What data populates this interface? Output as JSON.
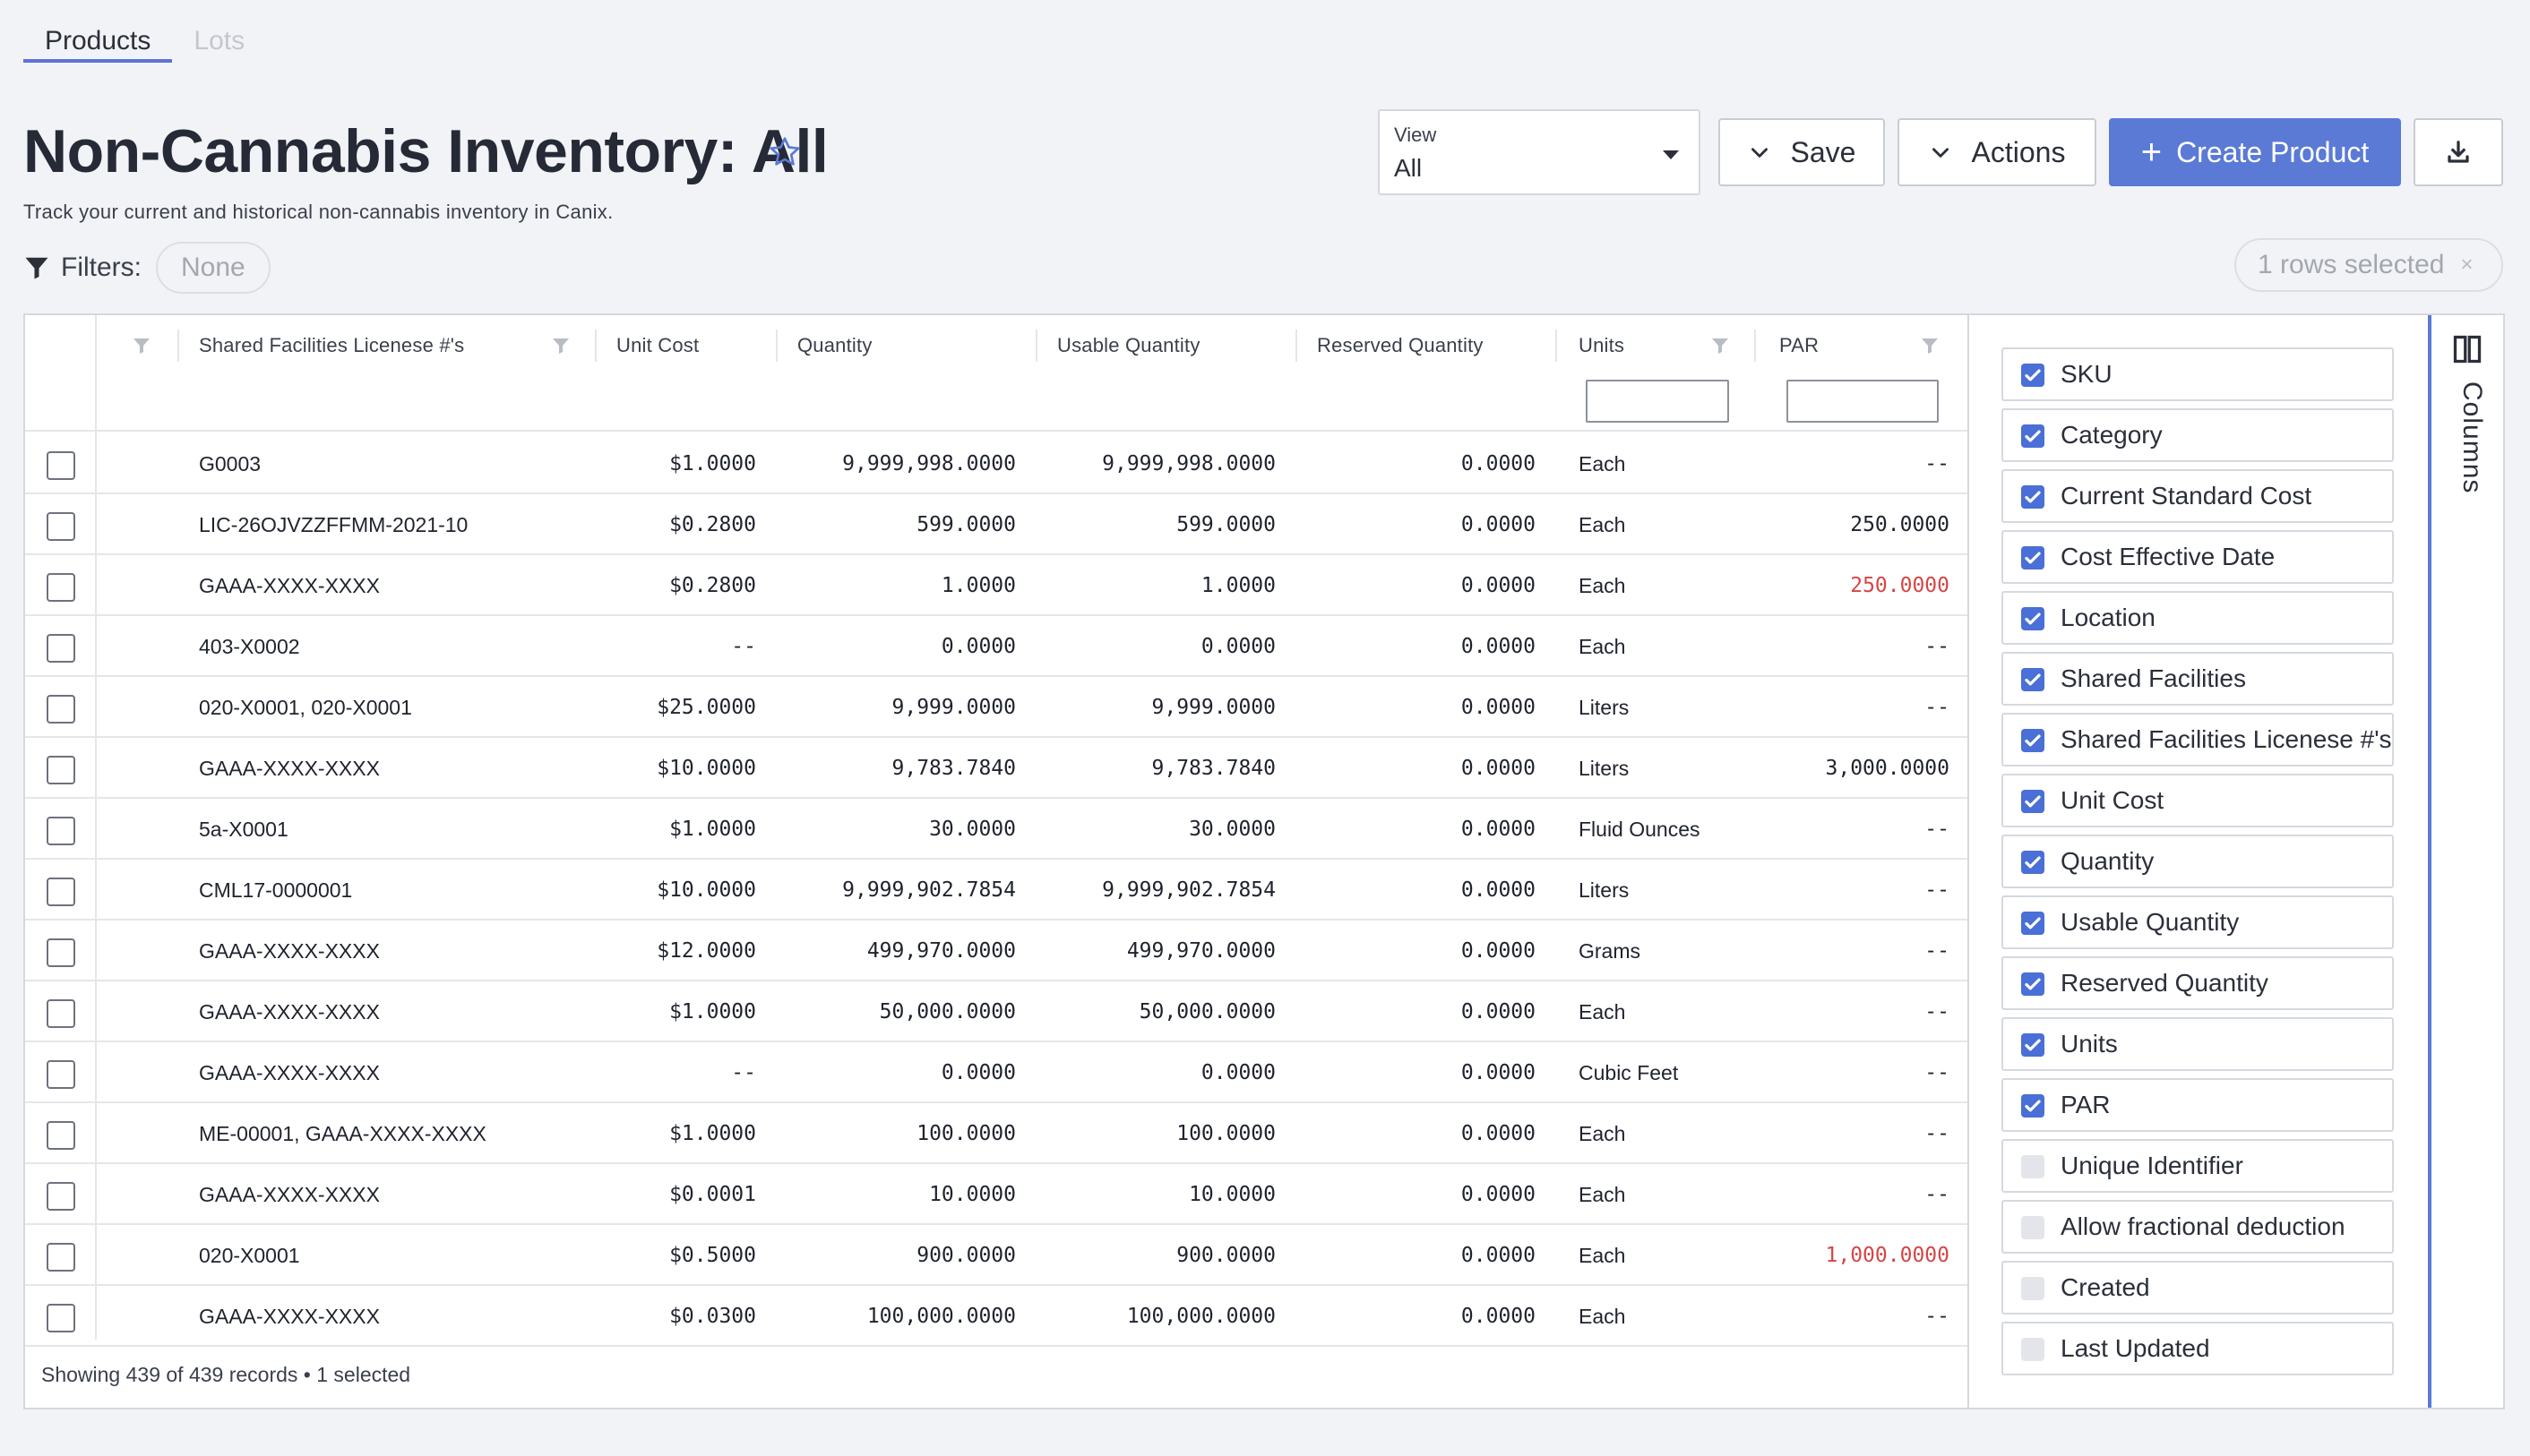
{
  "tabs": [
    {
      "label": "Products",
      "active": true
    },
    {
      "label": "Lots",
      "active": false
    }
  ],
  "header": {
    "title": "Non-Cannabis Inventory: All",
    "subtitle": "Track your current and historical non-cannabis inventory in Canix."
  },
  "view_select": {
    "label": "View",
    "value": "All"
  },
  "buttons": {
    "save": "Save",
    "actions": "Actions",
    "create": "Create Product"
  },
  "filters": {
    "label": "Filters:",
    "value": "None"
  },
  "selection": {
    "text": "1 rows selected",
    "clear": "×"
  },
  "columns": {
    "shared_facilities_licenses": "Shared Facilities Licenese #'s",
    "unit_cost": "Unit Cost",
    "quantity": "Quantity",
    "usable_quantity": "Usable Quantity",
    "reserved_quantity": "Reserved Quantity",
    "units": "Units",
    "par": "PAR"
  },
  "rows": [
    {
      "lic": "G0003",
      "cost": "$1.0000",
      "qty": "9,999,998.0000",
      "usable": "9,999,998.0000",
      "reserved": "0.0000",
      "units": "Each",
      "par": "--",
      "par_alert": false
    },
    {
      "lic": "LIC-26OJVZZFFMM-2021-10",
      "cost": "$0.2800",
      "qty": "599.0000",
      "usable": "599.0000",
      "reserved": "0.0000",
      "units": "Each",
      "par": "250.0000",
      "par_alert": false
    },
    {
      "lic": "GAAA-XXXX-XXXX",
      "cost": "$0.2800",
      "qty": "1.0000",
      "usable": "1.0000",
      "reserved": "0.0000",
      "units": "Each",
      "par": "250.0000",
      "par_alert": true
    },
    {
      "lic": "403-X0002",
      "cost": "--",
      "qty": "0.0000",
      "usable": "0.0000",
      "reserved": "0.0000",
      "units": "Each",
      "par": "--",
      "par_alert": false
    },
    {
      "lic": "020-X0001, 020-X0001",
      "cost": "$25.0000",
      "qty": "9,999.0000",
      "usable": "9,999.0000",
      "reserved": "0.0000",
      "units": "Liters",
      "par": "--",
      "par_alert": false
    },
    {
      "lic": "GAAA-XXXX-XXXX",
      "cost": "$10.0000",
      "qty": "9,783.7840",
      "usable": "9,783.7840",
      "reserved": "0.0000",
      "units": "Liters",
      "par": "3,000.0000",
      "par_alert": false
    },
    {
      "lic": "5a-X0001",
      "cost": "$1.0000",
      "qty": "30.0000",
      "usable": "30.0000",
      "reserved": "0.0000",
      "units": "Fluid Ounces",
      "par": "--",
      "par_alert": false
    },
    {
      "lic": "CML17-0000001",
      "cost": "$10.0000",
      "qty": "9,999,902.7854",
      "usable": "9,999,902.7854",
      "reserved": "0.0000",
      "units": "Liters",
      "par": "--",
      "par_alert": false
    },
    {
      "lic": "GAAA-XXXX-XXXX",
      "cost": "$12.0000",
      "qty": "499,970.0000",
      "usable": "499,970.0000",
      "reserved": "0.0000",
      "units": "Grams",
      "par": "--",
      "par_alert": false
    },
    {
      "lic": "GAAA-XXXX-XXXX",
      "cost": "$1.0000",
      "qty": "50,000.0000",
      "usable": "50,000.0000",
      "reserved": "0.0000",
      "units": "Each",
      "par": "--",
      "par_alert": false
    },
    {
      "lic": "GAAA-XXXX-XXXX",
      "cost": "--",
      "qty": "0.0000",
      "usable": "0.0000",
      "reserved": "0.0000",
      "units": "Cubic Feet",
      "par": "--",
      "par_alert": false
    },
    {
      "lic": "ME-00001, GAAA-XXXX-XXXX",
      "cost": "$1.0000",
      "qty": "100.0000",
      "usable": "100.0000",
      "reserved": "0.0000",
      "units": "Each",
      "par": "--",
      "par_alert": false
    },
    {
      "lic": "GAAA-XXXX-XXXX",
      "cost": "$0.0001",
      "qty": "10.0000",
      "usable": "10.0000",
      "reserved": "0.0000",
      "units": "Each",
      "par": "--",
      "par_alert": false
    },
    {
      "lic": "020-X0001",
      "cost": "$0.5000",
      "qty": "900.0000",
      "usable": "900.0000",
      "reserved": "0.0000",
      "units": "Each",
      "par": "1,000.0000",
      "par_alert": true
    },
    {
      "lic": "GAAA-XXXX-XXXX",
      "cost": "$0.0300",
      "qty": "100,000.0000",
      "usable": "100,000.0000",
      "reserved": "0.0000",
      "units": "Each",
      "par": "--",
      "par_alert": false
    }
  ],
  "footer": {
    "text": "Showing 439 of 439 records • 1 selected"
  },
  "column_chooser": {
    "tab_label": "Columns",
    "items": [
      {
        "label": "SKU",
        "checked": true
      },
      {
        "label": "Category",
        "checked": true
      },
      {
        "label": "Current Standard Cost",
        "checked": true
      },
      {
        "label": "Cost Effective Date",
        "checked": true
      },
      {
        "label": "Location",
        "checked": true
      },
      {
        "label": "Shared Facilities",
        "checked": true
      },
      {
        "label": "Shared Facilities Licenese #'s",
        "checked": true
      },
      {
        "label": "Unit Cost",
        "checked": true
      },
      {
        "label": "Quantity",
        "checked": true
      },
      {
        "label": "Usable Quantity",
        "checked": true
      },
      {
        "label": "Reserved Quantity",
        "checked": true
      },
      {
        "label": "Units",
        "checked": true
      },
      {
        "label": "PAR",
        "checked": true
      },
      {
        "label": "Unique Identifier",
        "checked": false
      },
      {
        "label": "Allow fractional deduction",
        "checked": false
      },
      {
        "label": "Created",
        "checked": false
      },
      {
        "label": "Last Updated",
        "checked": false
      }
    ]
  },
  "colors": {
    "accent": "#5a7ad6",
    "checkbox_on": "#4a6fd6",
    "alert": "#d64545"
  },
  "icons": [
    "star-icon",
    "chevron-down-icon",
    "plus-icon",
    "download-icon",
    "filter-icon",
    "funnel-icon",
    "columns-icon",
    "close-icon"
  ]
}
